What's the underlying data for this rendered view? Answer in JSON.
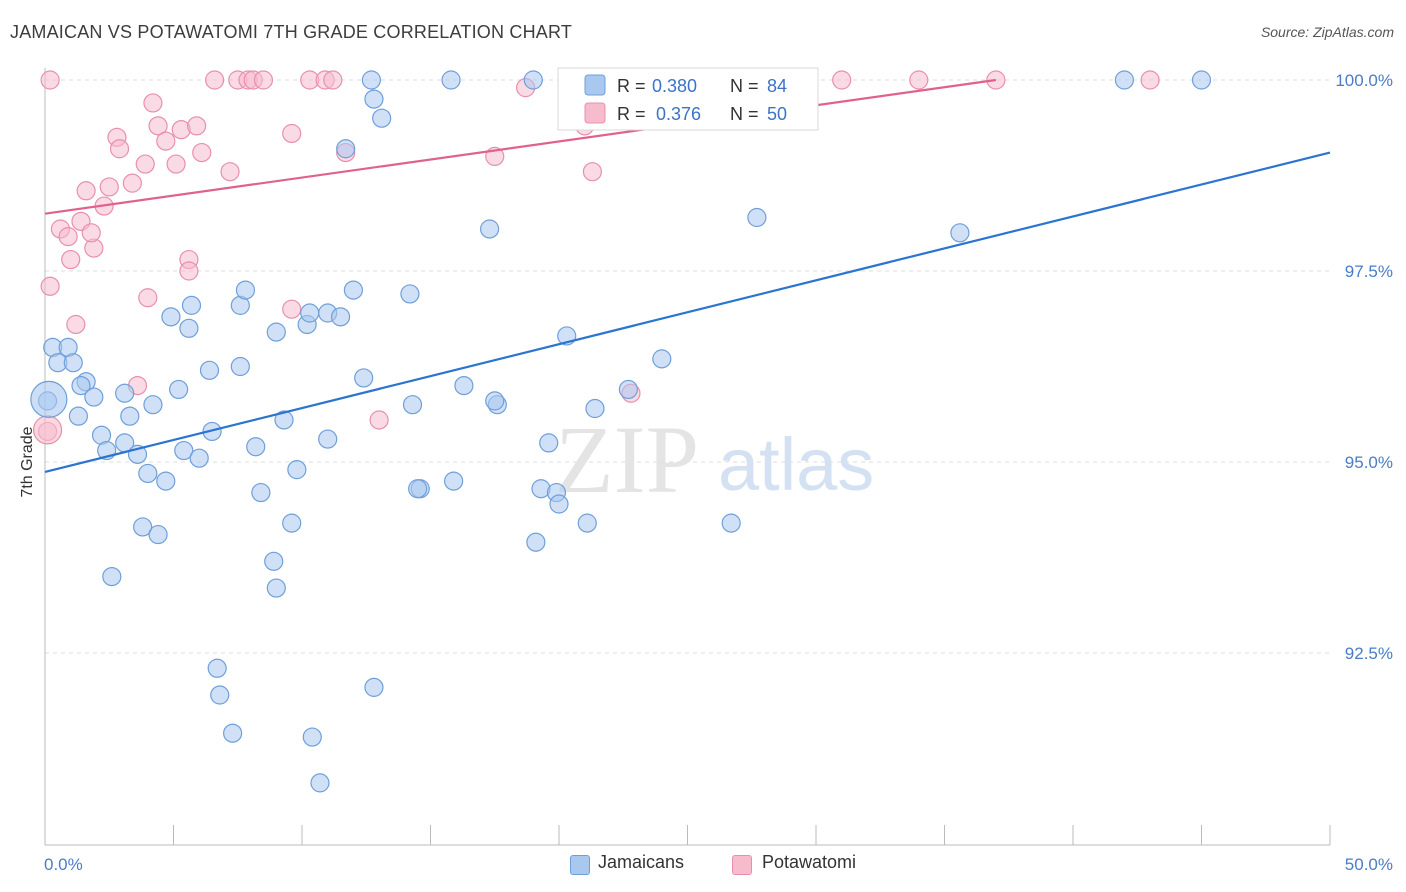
{
  "title": "JAMAICAN VS POTAWATOMI 7TH GRADE CORRELATION CHART",
  "source": "Source: ZipAtlas.com",
  "watermark": {
    "zip": "ZIP",
    "atlas": "atlas"
  },
  "legend_box": {
    "rows": [
      {
        "r_label": "R = ",
        "r_value": "0.380",
        "n_label": "N = ",
        "n_value": "84"
      },
      {
        "r_label": "R = ",
        "r_value": "0.376",
        "n_label": "N = ",
        "n_value": "50"
      }
    ]
  },
  "bottom_legend": {
    "items": [
      "Jamaicans",
      "Potawatomi"
    ]
  },
  "colors": {
    "blue_fill": "#a9c8f0",
    "blue_stroke": "#6f9fd8",
    "blue_line": "#2b74d0",
    "pink_fill": "#f6bccd",
    "pink_stroke": "#e890aa",
    "pink_line": "#e0628a",
    "tick_text": "#4a7cc7",
    "grid": "#dddddd"
  },
  "chart_data": {
    "type": "scatter",
    "title": "JAMAICAN VS POTAWATOMI 7TH GRADE CORRELATION CHART",
    "xlabel": "",
    "ylabel": "7th Grade",
    "xlim": [
      0,
      50
    ],
    "ylim": [
      90.0,
      100.2
    ],
    "x_tick_labels": [
      "0.0%",
      "50.0%"
    ],
    "y_ticks": [
      92.5,
      95.0,
      97.5,
      100.0
    ],
    "y_tick_labels": [
      "92.5%",
      "95.0%",
      "97.5%",
      "100.0%"
    ],
    "grid": true,
    "legend_position": "top-center",
    "series": [
      {
        "name": "Jamaicans",
        "r": 0.38,
        "n": 84,
        "trend": {
          "x": [
            0,
            50
          ],
          "y": [
            94.87,
            99.05
          ]
        },
        "points": [
          [
            0.3,
            96.5
          ],
          [
            0.9,
            96.5
          ],
          [
            0.5,
            96.3
          ],
          [
            1.1,
            96.3
          ],
          [
            1.6,
            96.05
          ],
          [
            1.4,
            96.0
          ],
          [
            0.1,
            95.8
          ],
          [
            1.9,
            95.85
          ],
          [
            3.1,
            95.9
          ],
          [
            4.2,
            95.75
          ],
          [
            5.2,
            95.95
          ],
          [
            1.3,
            95.6
          ],
          [
            3.3,
            95.6
          ],
          [
            2.2,
            95.35
          ],
          [
            3.1,
            95.25
          ],
          [
            2.4,
            95.15
          ],
          [
            3.6,
            95.1
          ],
          [
            5.4,
            95.15
          ],
          [
            6.0,
            95.05
          ],
          [
            4.0,
            94.85
          ],
          [
            4.7,
            94.75
          ],
          [
            6.5,
            95.4
          ],
          [
            8.2,
            95.2
          ],
          [
            9.3,
            95.55
          ],
          [
            9.8,
            94.9
          ],
          [
            8.4,
            94.6
          ],
          [
            11.0,
            95.3
          ],
          [
            12.4,
            96.1
          ],
          [
            14.3,
            95.75
          ],
          [
            16.3,
            96.0
          ],
          [
            17.6,
            95.75
          ],
          [
            17.5,
            95.8
          ],
          [
            14.6,
            94.65
          ],
          [
            14.5,
            94.65
          ],
          [
            15.9,
            94.75
          ],
          [
            19.3,
            94.65
          ],
          [
            19.9,
            94.6
          ],
          [
            20.0,
            94.45
          ],
          [
            19.6,
            95.25
          ],
          [
            21.4,
            95.7
          ],
          [
            22.7,
            95.95
          ],
          [
            24.0,
            96.35
          ],
          [
            20.3,
            96.65
          ],
          [
            26.7,
            94.2
          ],
          [
            6.4,
            96.2
          ],
          [
            7.6,
            96.25
          ],
          [
            10.2,
            96.8
          ],
          [
            10.3,
            96.95
          ],
          [
            11.0,
            96.95
          ],
          [
            11.5,
            96.9
          ],
          [
            12.0,
            97.25
          ],
          [
            7.6,
            97.05
          ],
          [
            7.8,
            97.25
          ],
          [
            5.7,
            97.05
          ],
          [
            4.9,
            96.9
          ],
          [
            5.6,
            96.75
          ],
          [
            9.0,
            96.7
          ],
          [
            14.2,
            97.2
          ],
          [
            2.6,
            93.5
          ],
          [
            3.8,
            94.15
          ],
          [
            4.4,
            94.05
          ],
          [
            8.9,
            93.7
          ],
          [
            9.0,
            93.35
          ],
          [
            9.6,
            94.2
          ],
          [
            6.7,
            92.3
          ],
          [
            6.8,
            91.95
          ],
          [
            7.3,
            91.45
          ],
          [
            10.4,
            91.4
          ],
          [
            10.7,
            90.8
          ],
          [
            12.8,
            92.05
          ],
          [
            21.1,
            94.2
          ],
          [
            19.1,
            93.95
          ],
          [
            12.8,
            99.75
          ],
          [
            13.1,
            99.5
          ],
          [
            11.7,
            99.1
          ],
          [
            17.3,
            98.05
          ],
          [
            27.7,
            98.2
          ],
          [
            35.6,
            98.0
          ],
          [
            12.7,
            100.0
          ],
          [
            15.8,
            100.0
          ],
          [
            19.0,
            100.0
          ],
          [
            26.5,
            100.0
          ],
          [
            42.0,
            100.0
          ],
          [
            45.0,
            100.0
          ]
        ]
      },
      {
        "name": "Potawatomi",
        "r": 0.376,
        "n": 50,
        "trend": {
          "x": [
            0,
            37
          ],
          "y": [
            98.25,
            100.0
          ]
        },
        "points": [
          [
            0.2,
            97.3
          ],
          [
            1.2,
            96.8
          ],
          [
            0.6,
            98.05
          ],
          [
            0.9,
            97.95
          ],
          [
            1.0,
            97.65
          ],
          [
            1.4,
            98.15
          ],
          [
            1.9,
            97.8
          ],
          [
            1.8,
            98.0
          ],
          [
            1.6,
            98.55
          ],
          [
            2.3,
            98.35
          ],
          [
            2.5,
            98.6
          ],
          [
            2.8,
            99.25
          ],
          [
            2.9,
            99.1
          ],
          [
            3.4,
            98.65
          ],
          [
            3.9,
            98.9
          ],
          [
            4.0,
            97.15
          ],
          [
            4.2,
            99.7
          ],
          [
            4.4,
            99.4
          ],
          [
            4.7,
            99.2
          ],
          [
            5.1,
            98.9
          ],
          [
            5.3,
            99.35
          ],
          [
            5.6,
            97.65
          ],
          [
            5.6,
            97.5
          ],
          [
            5.9,
            99.4
          ],
          [
            6.1,
            99.05
          ],
          [
            7.2,
            98.8
          ],
          [
            9.6,
            99.3
          ],
          [
            11.7,
            99.05
          ],
          [
            9.6,
            97.0
          ],
          [
            3.6,
            96.0
          ],
          [
            0.1,
            95.4
          ],
          [
            13.0,
            95.55
          ],
          [
            22.8,
            95.9
          ],
          [
            17.5,
            99.0
          ],
          [
            21.3,
            98.8
          ],
          [
            21.0,
            99.4
          ],
          [
            6.6,
            100.0
          ],
          [
            7.5,
            100.0
          ],
          [
            7.9,
            100.0
          ],
          [
            8.1,
            100.0
          ],
          [
            8.5,
            100.0
          ],
          [
            10.3,
            100.0
          ],
          [
            10.9,
            100.0
          ],
          [
            11.2,
            100.0
          ],
          [
            18.7,
            99.9
          ],
          [
            31.0,
            100.0
          ],
          [
            34.0,
            100.0
          ],
          [
            37.0,
            100.0
          ],
          [
            43.0,
            100.0
          ],
          [
            0.2,
            100.0
          ]
        ]
      }
    ]
  }
}
